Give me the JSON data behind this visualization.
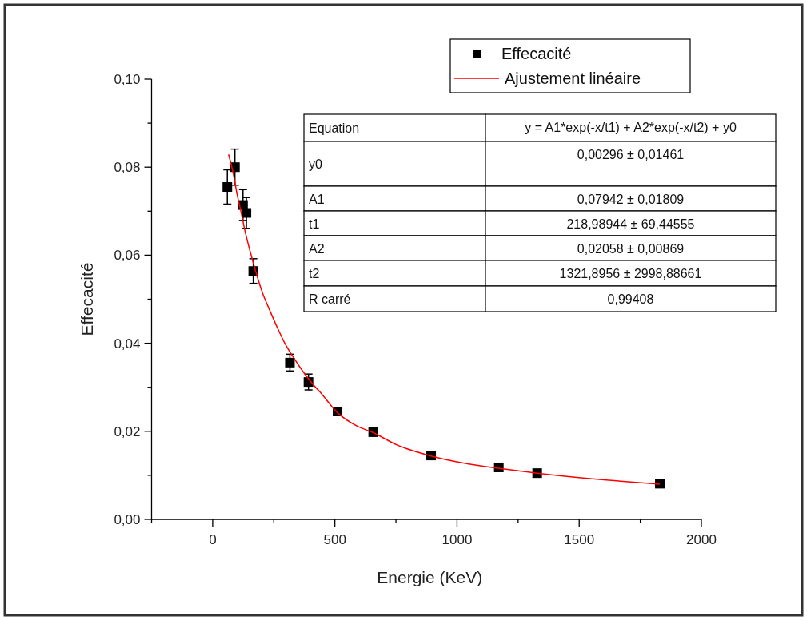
{
  "chart_data": {
    "type": "scatter",
    "xlabel": "Energie (KeV)",
    "ylabel": "Effecacité",
    "xlim": [
      -250,
      2000
    ],
    "ylim": [
      0,
      0.1
    ],
    "xticks": [
      {
        "value": -250,
        "label": null
      },
      0,
      {
        "value": 250,
        "label": null
      },
      500,
      {
        "value": 750,
        "label": null
      },
      1000,
      {
        "value": 1250,
        "label": null
      },
      1500,
      {
        "value": 1750,
        "label": null
      },
      2000
    ],
    "yticks": [
      {
        "value": 0,
        "label": "0,00"
      },
      {
        "value": 0.01,
        "label": null
      },
      {
        "value": 0.02,
        "label": "0,02"
      },
      {
        "value": 0.03,
        "label": null
      },
      {
        "value": 0.04,
        "label": "0,04"
      },
      {
        "value": 0.05,
        "label": null
      },
      {
        "value": 0.06,
        "label": "0,06"
      },
      {
        "value": 0.07,
        "label": null
      },
      {
        "value": 0.08,
        "label": "0,08"
      },
      {
        "value": 0.09,
        "label": null
      },
      {
        "value": 0.1,
        "label": "0,10"
      }
    ],
    "legend": "top right",
    "series": [
      {
        "name": "Effecacité",
        "marker": "square",
        "color": "#000000",
        "x": [
          60,
          91,
          124,
          138,
          166,
          316,
          392,
          511,
          657,
          894,
          1171,
          1328,
          1830
        ],
        "values": [
          0.0755,
          0.08,
          0.0714,
          0.0696,
          0.0564,
          0.0356,
          0.0312,
          0.0245,
          0.0198,
          0.0145,
          0.0118,
          0.0105,
          0.0081
        ],
        "errors": [
          0.0039,
          0.0041,
          0.0035,
          0.0035,
          0.0028,
          0.0019,
          0.0018,
          null,
          null,
          null,
          null,
          null,
          null
        ]
      },
      {
        "name": "Ajustement linéaire",
        "type": "line",
        "marker": "none",
        "line_style": "solid",
        "color": "#ff0000",
        "x": [
          65,
          84,
          100,
          117,
          133,
          155,
          176,
          204,
          231,
          264,
          296,
          329,
          373,
          416,
          438,
          511,
          590,
          657,
          754,
          894,
          1026,
          1171,
          1328,
          1516,
          1680,
          1830
        ],
        "values": [
          0.0829,
          0.0786,
          0.0738,
          0.0696,
          0.0653,
          0.0605,
          0.0563,
          0.0514,
          0.0478,
          0.0436,
          0.0399,
          0.0369,
          0.0333,
          0.0303,
          0.029,
          0.0242,
          0.0212,
          0.0197,
          0.0169,
          0.0144,
          0.0128,
          0.0116,
          0.0105,
          0.0094,
          0.0086,
          0.008
        ]
      }
    ],
    "annotations": [
      "Equation",
      "y = A1*exp(-x/t1) + A2*exp(-x/t2) + y0",
      "y0",
      "0,00296 ± 0,01461",
      "A1",
      "0,07942 ± 0,01809",
      "t1",
      "218,98944 ± 69,44555",
      "A2",
      "0,02058 ± 0,00869",
      "t2",
      "1321,8956 ± 2998,88661",
      "R carré",
      "0,99408"
    ]
  }
}
